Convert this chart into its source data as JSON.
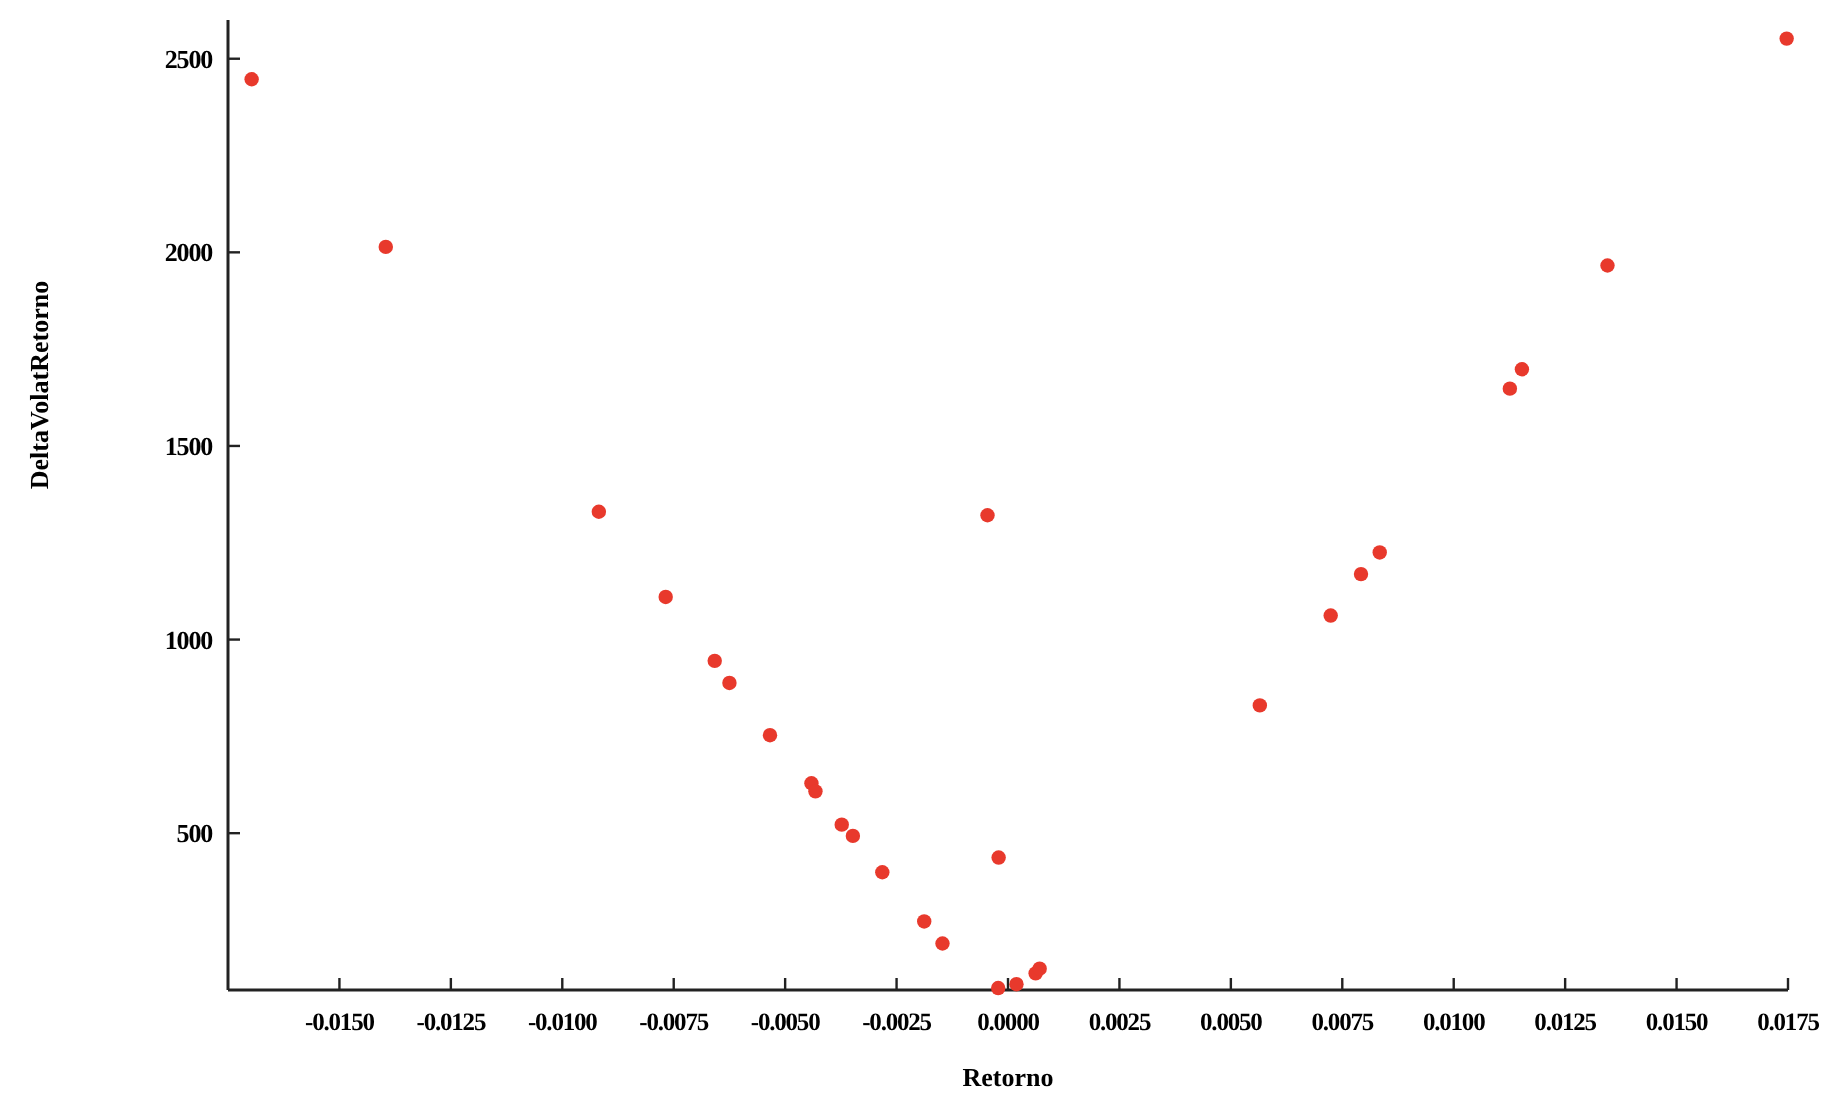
{
  "chart_data": {
    "type": "scatter",
    "xlabel": "Retorno",
    "ylabel": "DeltaVolatRetorno",
    "xlim": [
      -0.0175,
      0.0175
    ],
    "ylim": [
      95,
      2600
    ],
    "xticks": [
      {
        "value": -0.015,
        "label": "-0.0150"
      },
      {
        "value": -0.0125,
        "label": "-0.0125"
      },
      {
        "value": -0.01,
        "label": "-0.0100"
      },
      {
        "value": -0.0075,
        "label": "-0.0075"
      },
      {
        "value": -0.005,
        "label": "-0.0050"
      },
      {
        "value": -0.0025,
        "label": "-0.0025"
      },
      {
        "value": 0,
        "label": "0.0000"
      },
      {
        "value": 0.0025,
        "label": "0.0025"
      },
      {
        "value": 0.005,
        "label": "0.0050"
      },
      {
        "value": 0.0075,
        "label": "0.0075"
      },
      {
        "value": 0.01,
        "label": "0.0100"
      },
      {
        "value": 0.0125,
        "label": "0.0125"
      },
      {
        "value": 0.015,
        "label": "0.0150"
      },
      {
        "value": 0.0175,
        "label": "0.0175"
      }
    ],
    "yticks": [
      500,
      1000,
      1500,
      2000,
      2500
    ],
    "marker": "circle",
    "series": [
      {
        "color": "#e8392c",
        "x": [
          -0.01697,
          -0.01396,
          -0.00918,
          -0.00768,
          -0.00658,
          -0.00625,
          -0.00534,
          -0.00441,
          -0.00432,
          -0.00373,
          -0.00348,
          -0.00282,
          -0.00188,
          -0.00147,
          -0.00046,
          -0.00021,
          -0.00022,
          0.00019,
          0.00062,
          0.00071,
          0.00565,
          0.00724,
          0.00792,
          0.00834,
          0.01126,
          0.01153,
          0.01345,
          0.01747
        ],
        "values": [
          2447,
          2014,
          1330,
          1110,
          945,
          888,
          753,
          629,
          608,
          522,
          493,
          399,
          272,
          215,
          1321,
          437,
          100,
          110,
          138,
          150,
          830,
          1062,
          1169,
          1225,
          1648,
          1698,
          1966,
          2552
        ]
      }
    ]
  }
}
